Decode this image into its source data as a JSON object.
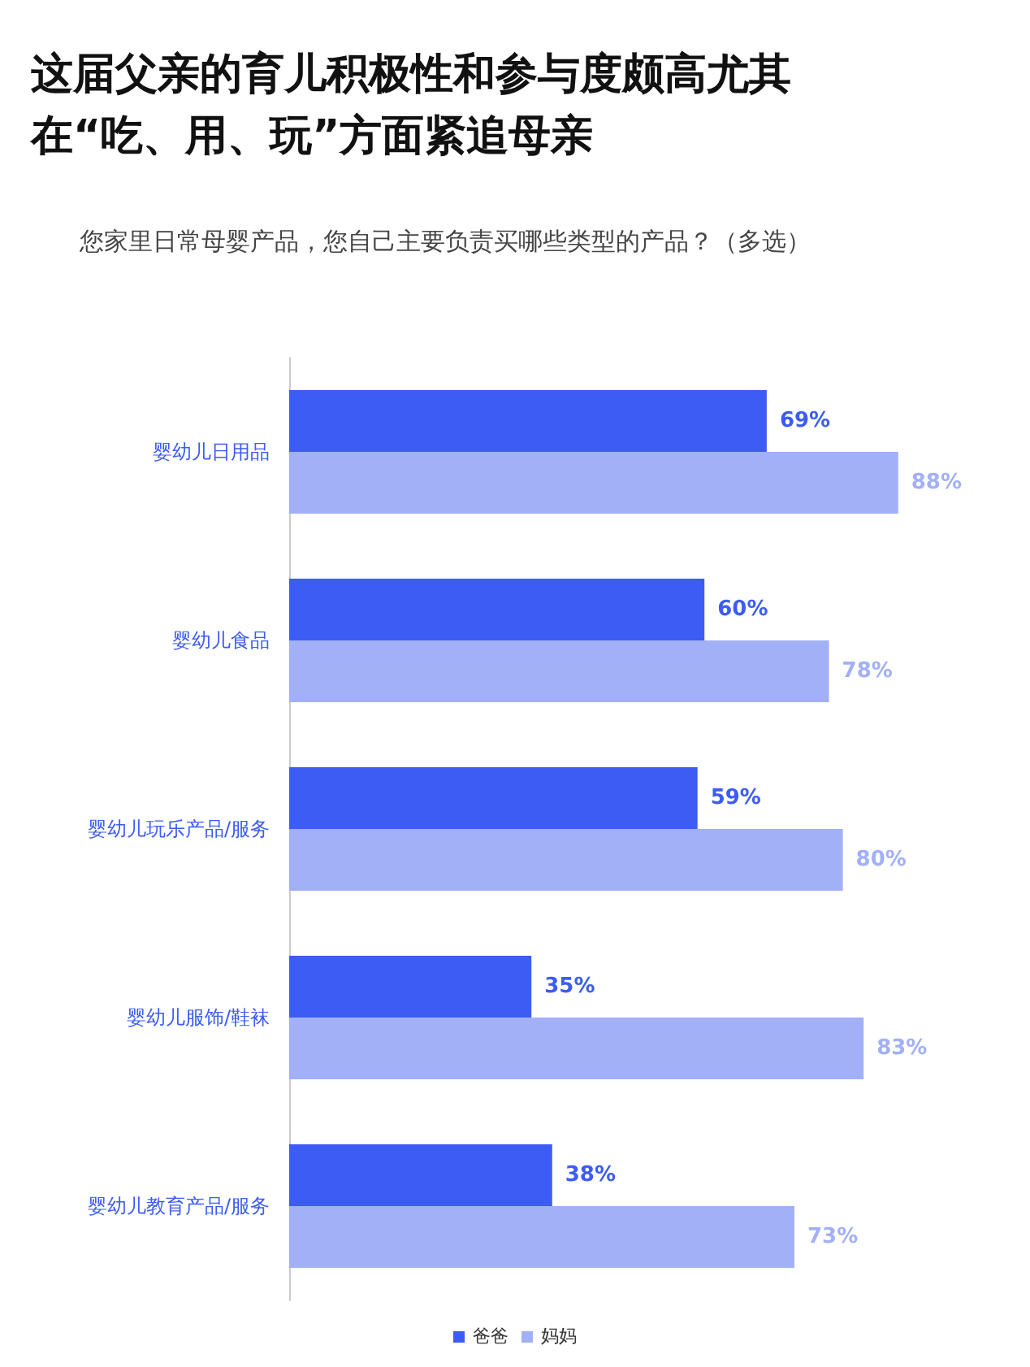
{
  "chart_data": {
    "type": "bar",
    "orientation": "horizontal",
    "title": "这届父亲的育儿积极性和参与度颇高尤其在“吃、用、玩”方面紧追母亲",
    "subtitle": "您家里日常母婴产品，您自己主要负责买哪些类型的产品？（多选）",
    "categories": [
      "婴幼儿日用品",
      "婴幼儿食品",
      "婴幼儿玩乐产品/服务",
      "婴幼儿服饰/鞋袜",
      "婴幼儿教育产品/服务"
    ],
    "series": [
      {
        "name": "爸爸",
        "color": "#3c5cf4",
        "values": [
          69,
          60,
          59,
          35,
          38
        ],
        "value_labels": [
          "69%",
          "60%",
          "59%",
          "35%",
          "38%"
        ]
      },
      {
        "name": "妈妈",
        "color": "#a2b0f8",
        "values": [
          88,
          78,
          80,
          83,
          73
        ],
        "value_labels": [
          "88%",
          "78%",
          "80%",
          "83%",
          "73%"
        ]
      }
    ],
    "legend": "bottom",
    "grid": false
  }
}
